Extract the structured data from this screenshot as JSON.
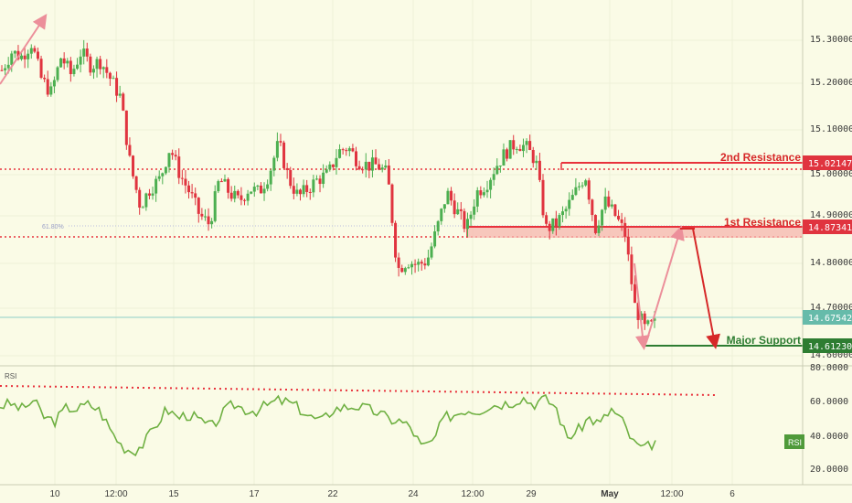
{
  "colors": {
    "background": "#fafbe6",
    "grid": "#eef0d8",
    "candle_up": "#4caf50",
    "candle_down": "#e0343f",
    "resistance": "#e8323c",
    "zone_fill": "#f5b5ae",
    "support": "#2e7d32",
    "current_line": "#8fcfc8",
    "current_badge": "#66bbaa",
    "rsi_line": "#6fb042",
    "rsi_badge": "#4f9a3a",
    "arrow_pink": "#ec8f9a",
    "arrow_red": "#d62828",
    "fib_line": "#b9bedf",
    "axis_text": "#3a3a3a"
  },
  "annotations": {
    "second_resistance": "2nd Resistance",
    "first_resistance": "1st Resistance",
    "major_support": "Major Support",
    "fib_label": "61.80%"
  },
  "price_axis": {
    "ticks": [
      "15.30000",
      "15.20000",
      "15.10000",
      "15.00000",
      "14.90000",
      "14.80000",
      "14.70000",
      "14.60000"
    ],
    "badges": {
      "second_resistance": "15.02147",
      "first_resistance": "14.87341",
      "current": "14.67542",
      "support": "14.61230"
    }
  },
  "rsi": {
    "label": "RSI",
    "badge": "RSI",
    "ticks": [
      "80.0000",
      "60.0000",
      "40.0000",
      "20.0000"
    ]
  },
  "time_axis": {
    "labels": [
      "10",
      "12:00",
      "15",
      "17",
      "22",
      "24",
      "12:00",
      "29",
      "May",
      "12:00",
      "6"
    ]
  },
  "chart_data": {
    "type": "candlestick",
    "price_ylim": [
      14.6,
      15.36
    ],
    "rsi_ylim": [
      15,
      85
    ],
    "levels": {
      "second_resistance": 15.02147,
      "first_resistance": 14.87341,
      "current_price": 14.67542,
      "major_support": 14.6123
    },
    "red_dotted_levels": [
      15.01,
      14.86
    ],
    "rsi_trendline_level": [
      70,
      64
    ],
    "close_path": [
      15.23,
      15.27,
      15.26,
      15.29,
      15.21,
      15.18,
      15.26,
      15.22,
      15.27,
      15.24,
      15.25,
      15.21,
      15.17,
      15.02,
      14.93,
      14.97,
      14.99,
      15.06,
      15.0,
      14.96,
      14.91,
      14.89,
      14.99,
      14.96,
      14.94,
      14.97,
      14.96,
      15.0,
      15.07,
      14.99,
      14.95,
      14.97,
      14.99,
      15.0,
      15.05,
      15.06,
      15.03,
      15.02,
      15.02,
      15.0,
      14.79,
      14.81,
      14.8,
      14.81,
      14.88,
      14.96,
      14.92,
      14.88,
      14.96,
      14.98,
      15.02,
      15.05,
      15.07,
      15.06,
      15.03,
      14.88,
      14.89,
      14.92,
      14.96,
      15.0,
      14.88,
      14.94,
      14.91,
      14.87,
      14.71,
      14.66,
      14.67
    ],
    "rsi_path": [
      57,
      58,
      55,
      60,
      50,
      48,
      56,
      55,
      58,
      54,
      42,
      33,
      30,
      35,
      45,
      55,
      50,
      52,
      48,
      44,
      52,
      58,
      55,
      54,
      57,
      60,
      59,
      55,
      50,
      48,
      55,
      56,
      57,
      55,
      53,
      49,
      48,
      44,
      32,
      36,
      50,
      52,
      55,
      54,
      57,
      58,
      59,
      62,
      58,
      61,
      57,
      38,
      42,
      50,
      46,
      55,
      48,
      35,
      31,
      36
    ]
  }
}
